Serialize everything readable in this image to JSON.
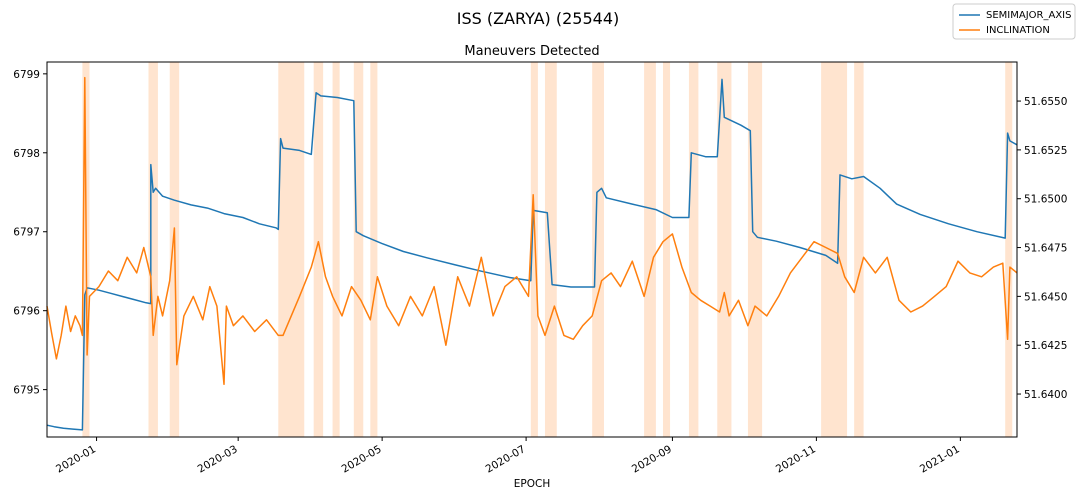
{
  "figure": {
    "suptitle": "ISS (ZARYA) (25544)"
  },
  "chart_data": {
    "type": "line",
    "title": "Maneuvers Detected",
    "xlabel": "EPOCH",
    "ylabel_left": "",
    "ylabel_right": "",
    "grid": false,
    "legend_position": "top-right",
    "xlim": [
      "2019-12-11",
      "2021-01-25"
    ],
    "ylim_left": [
      6794.4,
      6799.15
    ],
    "ylim_right": [
      51.6378,
      51.657
    ],
    "x_ticks": [
      "2020-01",
      "2020-03",
      "2020-05",
      "2020-07",
      "2020-09",
      "2020-11",
      "2021-01"
    ],
    "y_ticks_left": [
      6795,
      6796,
      6797,
      6798,
      6799
    ],
    "y_ticks_right": [
      "51.6400",
      "51.6425",
      "51.6450",
      "51.6475",
      "51.6500",
      "51.6525",
      "51.6550"
    ],
    "maneuver_color": "#ffe4cf",
    "maneuver_windows": [
      [
        "2019-12-26",
        "2019-12-29"
      ],
      [
        "2020-01-23",
        "2020-01-27"
      ],
      [
        "2020-02-01",
        "2020-02-05"
      ],
      [
        "2020-03-18",
        "2020-03-29"
      ],
      [
        "2020-04-02",
        "2020-04-06"
      ],
      [
        "2020-04-10",
        "2020-04-13"
      ],
      [
        "2020-04-19",
        "2020-04-23"
      ],
      [
        "2020-04-26",
        "2020-04-29"
      ],
      [
        "2020-07-03",
        "2020-07-06"
      ],
      [
        "2020-07-09",
        "2020-07-14"
      ],
      [
        "2020-07-29",
        "2020-08-03"
      ],
      [
        "2020-08-20",
        "2020-08-25"
      ],
      [
        "2020-08-28",
        "2020-08-31"
      ],
      [
        "2020-09-08",
        "2020-09-12"
      ],
      [
        "2020-09-20",
        "2020-09-26"
      ],
      [
        "2020-10-03",
        "2020-10-09"
      ],
      [
        "2020-11-03",
        "2020-11-14"
      ],
      [
        "2020-11-17",
        "2020-11-21"
      ],
      [
        "2021-01-20",
        "2021-01-23"
      ]
    ],
    "series": [
      {
        "name": "SEMIMAJOR_AXIS",
        "color": "#1f77b4",
        "axis": "left",
        "points": [
          [
            "2019-12-11",
            6794.55
          ],
          [
            "2019-12-14",
            6794.53
          ],
          [
            "2019-12-18",
            6794.51
          ],
          [
            "2019-12-22",
            6794.5
          ],
          [
            "2019-12-26",
            6794.49
          ],
          [
            "2019-12-27",
            6796.2
          ],
          [
            "2019-12-28",
            6796.29
          ],
          [
            "2020-01-02",
            6796.26
          ],
          [
            "2020-01-07",
            6796.22
          ],
          [
            "2020-01-12",
            6796.18
          ],
          [
            "2020-01-17",
            6796.14
          ],
          [
            "2020-01-22",
            6796.1
          ],
          [
            "2020-01-24",
            6796.09
          ],
          [
            "2020-01-24",
            6797.85
          ],
          [
            "2020-01-25",
            6797.5
          ],
          [
            "2020-01-26",
            6797.55
          ],
          [
            "2020-01-29",
            6797.45
          ],
          [
            "2020-02-03",
            6797.4
          ],
          [
            "2020-02-10",
            6797.34
          ],
          [
            "2020-02-17",
            6797.3
          ],
          [
            "2020-02-24",
            6797.23
          ],
          [
            "2020-03-03",
            6797.18
          ],
          [
            "2020-03-10",
            6797.1
          ],
          [
            "2020-03-17",
            6797.05
          ],
          [
            "2020-03-18",
            6797.03
          ],
          [
            "2020-03-19",
            6798.18
          ],
          [
            "2020-03-20",
            6798.06
          ],
          [
            "2020-03-27",
            6798.03
          ],
          [
            "2020-04-01",
            6797.98
          ],
          [
            "2020-04-03",
            6798.76
          ],
          [
            "2020-04-05",
            6798.72
          ],
          [
            "2020-04-12",
            6798.7
          ],
          [
            "2020-04-19",
            6798.66
          ],
          [
            "2020-04-20",
            6797.0
          ],
          [
            "2020-04-23",
            6796.95
          ],
          [
            "2020-05-01",
            6796.85
          ],
          [
            "2020-05-10",
            6796.75
          ],
          [
            "2020-05-20",
            6796.67
          ],
          [
            "2020-06-01",
            6796.58
          ],
          [
            "2020-06-12",
            6796.5
          ],
          [
            "2020-06-24",
            6796.42
          ],
          [
            "2020-07-03",
            6796.38
          ],
          [
            "2020-07-04",
            6797.27
          ],
          [
            "2020-07-10",
            6797.24
          ],
          [
            "2020-07-12",
            6796.33
          ],
          [
            "2020-07-20",
            6796.3
          ],
          [
            "2020-07-30",
            6796.3
          ],
          [
            "2020-07-31",
            6797.5
          ],
          [
            "2020-08-02",
            6797.55
          ],
          [
            "2020-08-04",
            6797.43
          ],
          [
            "2020-08-15",
            6797.35
          ],
          [
            "2020-08-25",
            6797.28
          ],
          [
            "2020-09-01",
            6797.18
          ],
          [
            "2020-09-08",
            6797.18
          ],
          [
            "2020-09-09",
            6798.0
          ],
          [
            "2020-09-15",
            6797.95
          ],
          [
            "2020-09-20",
            6797.95
          ],
          [
            "2020-09-22",
            6798.93
          ],
          [
            "2020-09-23",
            6798.45
          ],
          [
            "2020-09-30",
            6798.35
          ],
          [
            "2020-10-04",
            6798.28
          ],
          [
            "2020-10-05",
            6797.0
          ],
          [
            "2020-10-07",
            6796.93
          ],
          [
            "2020-10-15",
            6796.88
          ],
          [
            "2020-10-25",
            6796.8
          ],
          [
            "2020-11-05",
            6796.7
          ],
          [
            "2020-11-10",
            6796.6
          ],
          [
            "2020-11-11",
            6797.72
          ],
          [
            "2020-11-16",
            6797.67
          ],
          [
            "2020-11-21",
            6797.7
          ],
          [
            "2020-11-28",
            6797.55
          ],
          [
            "2020-12-05",
            6797.35
          ],
          [
            "2020-12-15",
            6797.22
          ],
          [
            "2020-12-27",
            6797.1
          ],
          [
            "2021-01-08",
            6797.0
          ],
          [
            "2021-01-20",
            6796.92
          ],
          [
            "2021-01-21",
            6798.25
          ],
          [
            "2021-01-22",
            6798.15
          ],
          [
            "2021-01-25",
            6798.1
          ]
        ]
      },
      {
        "name": "INCLINATION",
        "color": "#ff7f0e",
        "axis": "right",
        "points": [
          [
            "2019-12-11",
            51.6445
          ],
          [
            "2019-12-13",
            51.6431
          ],
          [
            "2019-12-15",
            51.6418
          ],
          [
            "2019-12-17",
            51.643
          ],
          [
            "2019-12-19",
            51.6445
          ],
          [
            "2019-12-21",
            51.6432
          ],
          [
            "2019-12-23",
            51.644
          ],
          [
            "2019-12-25",
            51.6435
          ],
          [
            "2019-12-26",
            51.643
          ],
          [
            "2019-12-27",
            51.6562
          ],
          [
            "2019-12-28",
            51.642
          ],
          [
            "2019-12-29",
            51.645
          ],
          [
            "2020-01-02",
            51.6455
          ],
          [
            "2020-01-06",
            51.6463
          ],
          [
            "2020-01-10",
            51.6458
          ],
          [
            "2020-01-14",
            51.647
          ],
          [
            "2020-01-18",
            51.6462
          ],
          [
            "2020-01-21",
            51.6475
          ],
          [
            "2020-01-24",
            51.646
          ],
          [
            "2020-01-25",
            51.643
          ],
          [
            "2020-01-27",
            51.645
          ],
          [
            "2020-01-29",
            51.644
          ],
          [
            "2020-02-01",
            51.6458
          ],
          [
            "2020-02-03",
            51.6485
          ],
          [
            "2020-02-04",
            51.6415
          ],
          [
            "2020-02-07",
            51.644
          ],
          [
            "2020-02-11",
            51.645
          ],
          [
            "2020-02-15",
            51.6438
          ],
          [
            "2020-02-18",
            51.6455
          ],
          [
            "2020-02-21",
            51.6445
          ],
          [
            "2020-02-24",
            51.6405
          ],
          [
            "2020-02-25",
            51.6445
          ],
          [
            "2020-02-28",
            51.6435
          ],
          [
            "2020-03-03",
            51.644
          ],
          [
            "2020-03-08",
            51.6432
          ],
          [
            "2020-03-13",
            51.6438
          ],
          [
            "2020-03-18",
            51.643
          ],
          [
            "2020-03-20",
            51.643
          ],
          [
            "2020-03-27",
            51.645
          ],
          [
            "2020-04-01",
            51.6465
          ],
          [
            "2020-04-04",
            51.6478
          ],
          [
            "2020-04-07",
            51.646
          ],
          [
            "2020-04-10",
            51.645
          ],
          [
            "2020-04-14",
            51.644
          ],
          [
            "2020-04-18",
            51.6455
          ],
          [
            "2020-04-22",
            51.6448
          ],
          [
            "2020-04-26",
            51.6438
          ],
          [
            "2020-04-29",
            51.646
          ],
          [
            "2020-05-03",
            51.6445
          ],
          [
            "2020-05-08",
            51.6435
          ],
          [
            "2020-05-13",
            51.645
          ],
          [
            "2020-05-18",
            51.644
          ],
          [
            "2020-05-23",
            51.6455
          ],
          [
            "2020-05-28",
            51.6425
          ],
          [
            "2020-06-02",
            51.646
          ],
          [
            "2020-06-07",
            51.6445
          ],
          [
            "2020-06-12",
            51.647
          ],
          [
            "2020-06-17",
            51.644
          ],
          [
            "2020-06-22",
            51.6455
          ],
          [
            "2020-06-27",
            51.646
          ],
          [
            "2020-07-02",
            51.645
          ],
          [
            "2020-07-04",
            51.6502
          ],
          [
            "2020-07-06",
            51.644
          ],
          [
            "2020-07-09",
            51.643
          ],
          [
            "2020-07-13",
            51.6445
          ],
          [
            "2020-07-17",
            51.643
          ],
          [
            "2020-07-21",
            51.6428
          ],
          [
            "2020-07-25",
            51.6435
          ],
          [
            "2020-07-29",
            51.644
          ],
          [
            "2020-08-02",
            51.6458
          ],
          [
            "2020-08-06",
            51.6462
          ],
          [
            "2020-08-10",
            51.6455
          ],
          [
            "2020-08-15",
            51.6468
          ],
          [
            "2020-08-20",
            51.645
          ],
          [
            "2020-08-24",
            51.647
          ],
          [
            "2020-08-28",
            51.6478
          ],
          [
            "2020-09-01",
            51.6482
          ],
          [
            "2020-09-05",
            51.6465
          ],
          [
            "2020-09-09",
            51.6452
          ],
          [
            "2020-09-13",
            51.6448
          ],
          [
            "2020-09-17",
            51.6445
          ],
          [
            "2020-09-21",
            51.6442
          ],
          [
            "2020-09-23",
            51.6452
          ],
          [
            "2020-09-25",
            51.644
          ],
          [
            "2020-09-29",
            51.6448
          ],
          [
            "2020-10-03",
            51.6435
          ],
          [
            "2020-10-06",
            51.6445
          ],
          [
            "2020-10-11",
            51.644
          ],
          [
            "2020-10-16",
            51.645
          ],
          [
            "2020-10-21",
            51.6462
          ],
          [
            "2020-10-26",
            51.647
          ],
          [
            "2020-10-31",
            51.6478
          ],
          [
            "2020-11-05",
            51.6475
          ],
          [
            "2020-11-10",
            51.6472
          ],
          [
            "2020-11-13",
            51.646
          ],
          [
            "2020-11-17",
            51.6452
          ],
          [
            "2020-11-21",
            51.647
          ],
          [
            "2020-11-26",
            51.6462
          ],
          [
            "2020-12-01",
            51.647
          ],
          [
            "2020-12-06",
            51.6448
          ],
          [
            "2020-12-11",
            51.6442
          ],
          [
            "2020-12-16",
            51.6445
          ],
          [
            "2020-12-21",
            51.645
          ],
          [
            "2020-12-26",
            51.6455
          ],
          [
            "2020-12-31",
            51.6468
          ],
          [
            "2021-01-05",
            51.6462
          ],
          [
            "2021-01-10",
            51.646
          ],
          [
            "2021-01-15",
            51.6465
          ],
          [
            "2021-01-19",
            51.6467
          ],
          [
            "2021-01-21",
            51.6428
          ],
          [
            "2021-01-22",
            51.6465
          ],
          [
            "2021-01-25",
            51.6462
          ]
        ]
      }
    ]
  }
}
